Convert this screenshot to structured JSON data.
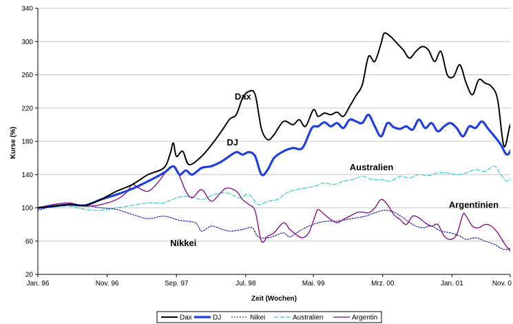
{
  "chart_data": {
    "type": "line",
    "xlabel": "Zeit (Wochen)",
    "ylabel": "Kurse (%)",
    "ylim": [
      20,
      340
    ],
    "yticks": [
      20,
      60,
      100,
      140,
      180,
      220,
      260,
      300,
      340
    ],
    "xlim": [
      0,
      300
    ],
    "xticks": [
      {
        "pos": 0,
        "label": "Jan. 96"
      },
      {
        "pos": 44,
        "label": "Nov. 96"
      },
      {
        "pos": 88,
        "label": "Sep. 97"
      },
      {
        "pos": 132,
        "label": "Jul. 98"
      },
      {
        "pos": 175,
        "label": "Mai. 99"
      },
      {
        "pos": 219,
        "label": "Mrz. 00"
      },
      {
        "pos": 263,
        "label": "Jan. 01"
      },
      {
        "pos": 300,
        "label": "Nov. 0"
      }
    ],
    "grid": "horizontal",
    "legend": "bottom-center",
    "series": [
      {
        "name": "Dax",
        "color": "#000000",
        "style": "solid-medium",
        "points": [
          [
            0,
            100
          ],
          [
            10,
            102
          ],
          [
            20,
            104
          ],
          [
            30,
            103
          ],
          [
            40,
            110
          ],
          [
            50,
            120
          ],
          [
            60,
            128
          ],
          [
            70,
            140
          ],
          [
            80,
            148
          ],
          [
            84,
            165
          ],
          [
            86,
            178
          ],
          [
            88,
            162
          ],
          [
            92,
            168
          ],
          [
            96,
            152
          ],
          [
            104,
            162
          ],
          [
            112,
            180
          ],
          [
            118,
            196
          ],
          [
            122,
            207
          ],
          [
            126,
            212
          ],
          [
            130,
            232
          ],
          [
            134,
            240
          ],
          [
            138,
            236
          ],
          [
            142,
            195
          ],
          [
            146,
            182
          ],
          [
            150,
            188
          ],
          [
            156,
            204
          ],
          [
            162,
            200
          ],
          [
            166,
            206
          ],
          [
            170,
            198
          ],
          [
            175,
            218
          ],
          [
            178,
            210
          ],
          [
            182,
            214
          ],
          [
            186,
            212
          ],
          [
            190,
            215
          ],
          [
            194,
            210
          ],
          [
            198,
            222
          ],
          [
            202,
            235
          ],
          [
            206,
            248
          ],
          [
            210,
            282
          ],
          [
            214,
            276
          ],
          [
            218,
            298
          ],
          [
            220,
            310
          ],
          [
            224,
            306
          ],
          [
            228,
            298
          ],
          [
            232,
            290
          ],
          [
            236,
            280
          ],
          [
            240,
            288
          ],
          [
            244,
            294
          ],
          [
            248,
            290
          ],
          [
            252,
            276
          ],
          [
            256,
            288
          ],
          [
            260,
            260
          ],
          [
            264,
            258
          ],
          [
            268,
            272
          ],
          [
            272,
            250
          ],
          [
            276,
            236
          ],
          [
            280,
            254
          ],
          [
            284,
            250
          ],
          [
            288,
            246
          ],
          [
            292,
            230
          ],
          [
            296,
            174
          ],
          [
            300,
            200
          ],
          [
            304,
            210
          ]
        ]
      },
      {
        "name": "DJ",
        "color": "#1f3fdf",
        "style": "solid-thick",
        "points": [
          [
            0,
            100
          ],
          [
            10,
            102
          ],
          [
            20,
            104
          ],
          [
            30,
            103
          ],
          [
            40,
            110
          ],
          [
            50,
            116
          ],
          [
            60,
            123
          ],
          [
            70,
            132
          ],
          [
            80,
            142
          ],
          [
            86,
            150
          ],
          [
            90,
            140
          ],
          [
            94,
            145
          ],
          [
            98,
            140
          ],
          [
            104,
            148
          ],
          [
            110,
            150
          ],
          [
            116,
            155
          ],
          [
            120,
            160
          ],
          [
            126,
            167
          ],
          [
            130,
            164
          ],
          [
            134,
            167
          ],
          [
            138,
            162
          ],
          [
            142,
            140
          ],
          [
            146,
            146
          ],
          [
            150,
            160
          ],
          [
            156,
            168
          ],
          [
            162,
            172
          ],
          [
            168,
            172
          ],
          [
            174,
            196
          ],
          [
            178,
            198
          ],
          [
            182,
            203
          ],
          [
            186,
            198
          ],
          [
            190,
            202
          ],
          [
            194,
            196
          ],
          [
            198,
            206
          ],
          [
            202,
            204
          ],
          [
            206,
            202
          ],
          [
            210,
            212
          ],
          [
            214,
            198
          ],
          [
            218,
            186
          ],
          [
            222,
            202
          ],
          [
            226,
            197
          ],
          [
            230,
            195
          ],
          [
            234,
            198
          ],
          [
            238,
            194
          ],
          [
            242,
            206
          ],
          [
            246,
            196
          ],
          [
            250,
            202
          ],
          [
            254,
            192
          ],
          [
            258,
            198
          ],
          [
            262,
            202
          ],
          [
            266,
            196
          ],
          [
            270,
            186
          ],
          [
            274,
            198
          ],
          [
            278,
            196
          ],
          [
            282,
            204
          ],
          [
            286,
            195
          ],
          [
            290,
            186
          ],
          [
            294,
            176
          ],
          [
            298,
            164
          ],
          [
            302,
            175
          ],
          [
            306,
            186
          ]
        ]
      },
      {
        "name": "Nikei",
        "color": "#2222aa",
        "style": "dotted",
        "points": [
          [
            0,
            97
          ],
          [
            10,
            102
          ],
          [
            20,
            104
          ],
          [
            30,
            103
          ],
          [
            40,
            100
          ],
          [
            50,
            98
          ],
          [
            60,
            92
          ],
          [
            70,
            87
          ],
          [
            80,
            90
          ],
          [
            90,
            85
          ],
          [
            100,
            82
          ],
          [
            104,
            72
          ],
          [
            110,
            78
          ],
          [
            116,
            75
          ],
          [
            122,
            72
          ],
          [
            130,
            74
          ],
          [
            136,
            76
          ],
          [
            140,
            65
          ],
          [
            146,
            64
          ],
          [
            150,
            66
          ],
          [
            156,
            70
          ],
          [
            160,
            65
          ],
          [
            166,
            72
          ],
          [
            172,
            78
          ],
          [
            178,
            82
          ],
          [
            184,
            84
          ],
          [
            190,
            84
          ],
          [
            196,
            86
          ],
          [
            202,
            88
          ],
          [
            208,
            90
          ],
          [
            214,
            94
          ],
          [
            220,
            97
          ],
          [
            226,
            95
          ],
          [
            232,
            88
          ],
          [
            238,
            80
          ],
          [
            244,
            76
          ],
          [
            250,
            78
          ],
          [
            256,
            72
          ],
          [
            262,
            70
          ],
          [
            268,
            66
          ],
          [
            272,
            62
          ],
          [
            278,
            64
          ],
          [
            284,
            60
          ],
          [
            290,
            56
          ],
          [
            296,
            50
          ],
          [
            302,
            52
          ],
          [
            306,
            52
          ]
        ]
      },
      {
        "name": "Australien",
        "color": "#33cccc",
        "style": "dashed",
        "points": [
          [
            0,
            100
          ],
          [
            10,
            101
          ],
          [
            20,
            102
          ],
          [
            30,
            98
          ],
          [
            40,
            97
          ],
          [
            50,
            100
          ],
          [
            60,
            103
          ],
          [
            70,
            106
          ],
          [
            80,
            106
          ],
          [
            88,
            112
          ],
          [
            96,
            114
          ],
          [
            104,
            110
          ],
          [
            112,
            116
          ],
          [
            120,
            118
          ],
          [
            128,
            112
          ],
          [
            134,
            116
          ],
          [
            140,
            104
          ],
          [
            146,
            108
          ],
          [
            152,
            110
          ],
          [
            158,
            118
          ],
          [
            164,
            122
          ],
          [
            170,
            124
          ],
          [
            176,
            126
          ],
          [
            182,
            130
          ],
          [
            188,
            128
          ],
          [
            194,
            132
          ],
          [
            200,
            134
          ],
          [
            206,
            138
          ],
          [
            212,
            134
          ],
          [
            218,
            134
          ],
          [
            224,
            132
          ],
          [
            230,
            138
          ],
          [
            236,
            136
          ],
          [
            242,
            140
          ],
          [
            248,
            139
          ],
          [
            254,
            142
          ],
          [
            260,
            142
          ],
          [
            266,
            140
          ],
          [
            272,
            142
          ],
          [
            278,
            146
          ],
          [
            284,
            144
          ],
          [
            290,
            150
          ],
          [
            294,
            140
          ],
          [
            298,
            132
          ],
          [
            302,
            140
          ],
          [
            306,
            146
          ]
        ]
      },
      {
        "name": "Argentin",
        "color": "#800080",
        "style": "solid-thin",
        "points": [
          [
            0,
            100
          ],
          [
            10,
            104
          ],
          [
            20,
            106
          ],
          [
            30,
            102
          ],
          [
            40,
            104
          ],
          [
            50,
            110
          ],
          [
            56,
            118
          ],
          [
            60,
            128
          ],
          [
            64,
            124
          ],
          [
            70,
            120
          ],
          [
            76,
            130
          ],
          [
            82,
            145
          ],
          [
            86,
            150
          ],
          [
            90,
            138
          ],
          [
            94,
            120
          ],
          [
            98,
            112
          ],
          [
            104,
            122
          ],
          [
            110,
            108
          ],
          [
            116,
            118
          ],
          [
            120,
            124
          ],
          [
            126,
            120
          ],
          [
            130,
            110
          ],
          [
            134,
            104
          ],
          [
            138,
            96
          ],
          [
            142,
            60
          ],
          [
            146,
            66
          ],
          [
            150,
            70
          ],
          [
            156,
            82
          ],
          [
            160,
            74
          ],
          [
            164,
            68
          ],
          [
            168,
            64
          ],
          [
            172,
            70
          ],
          [
            176,
            90
          ],
          [
            178,
            98
          ],
          [
            182,
            92
          ],
          [
            186,
            86
          ],
          [
            190,
            82
          ],
          [
            194,
            86
          ],
          [
            198,
            90
          ],
          [
            204,
            95
          ],
          [
            210,
            94
          ],
          [
            214,
            100
          ],
          [
            218,
            110
          ],
          [
            222,
            104
          ],
          [
            226,
            92
          ],
          [
            230,
            86
          ],
          [
            234,
            80
          ],
          [
            238,
            90
          ],
          [
            242,
            88
          ],
          [
            246,
            82
          ],
          [
            250,
            78
          ],
          [
            254,
            80
          ],
          [
            258,
            66
          ],
          [
            262,
            62
          ],
          [
            266,
            68
          ],
          [
            270,
            92
          ],
          [
            272,
            90
          ],
          [
            276,
            78
          ],
          [
            280,
            76
          ],
          [
            284,
            80
          ],
          [
            288,
            78
          ],
          [
            292,
            70
          ],
          [
            296,
            58
          ],
          [
            300,
            48
          ],
          [
            304,
            40
          ],
          [
            308,
            34
          ],
          [
            312,
            52
          ]
        ]
      }
    ],
    "annotations": [
      {
        "text": "Dax",
        "x": 125,
        "y": 230
      },
      {
        "text": "DJ",
        "x": 120,
        "y": 175
      },
      {
        "text": "Australien",
        "x": 198,
        "y": 145
      },
      {
        "text": "Nikkei",
        "x": 84,
        "y": 54
      },
      {
        "text": "Argentinien",
        "x": 261,
        "y": 100
      }
    ]
  }
}
